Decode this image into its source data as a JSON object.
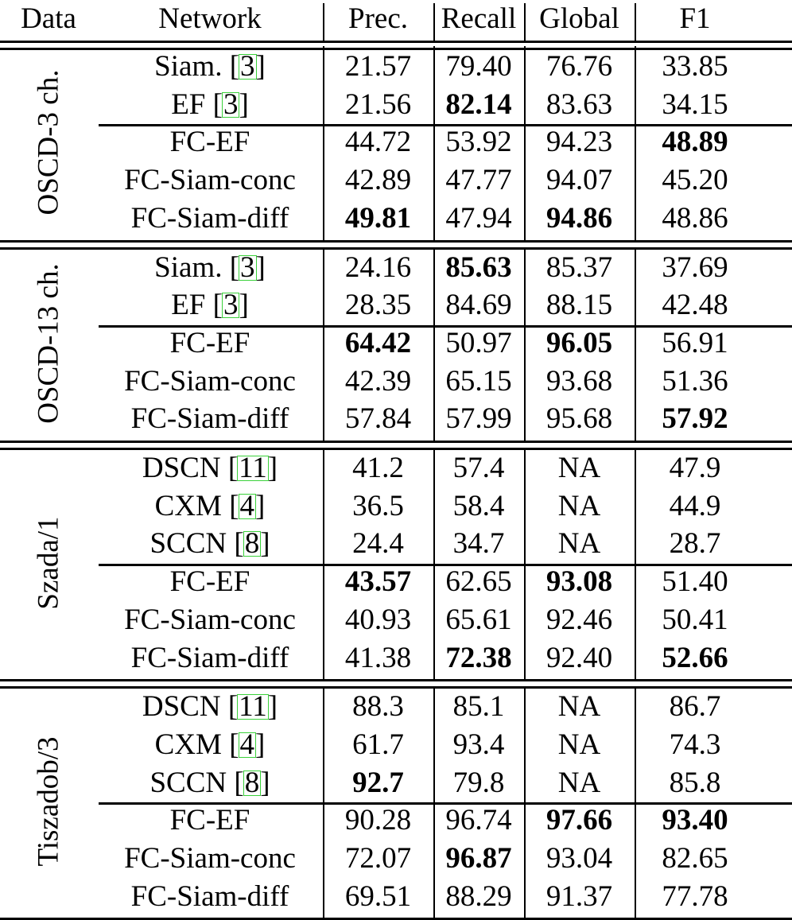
{
  "table": {
    "headers": [
      "Data",
      "Network",
      "Prec.",
      "Recall",
      "Global",
      "F1"
    ],
    "groups": [
      {
        "label": "OSCD-3 ch.",
        "rows": [
          {
            "network": "Siam.",
            "cite": "3",
            "prec": "21.57",
            "recall": "79.40",
            "global": "76.76",
            "f1": "33.85",
            "bold": []
          },
          {
            "network": "EF",
            "cite": "3",
            "prec": "21.56",
            "recall": "82.14",
            "global": "83.63",
            "f1": "34.15",
            "bold": [
              "recall"
            ]
          },
          {
            "network": "FC-EF",
            "cite": null,
            "prec": "44.72",
            "recall": "53.92",
            "global": "94.23",
            "f1": "48.89",
            "bold": [
              "f1"
            ]
          },
          {
            "network": "FC-Siam-conc",
            "cite": null,
            "prec": "42.89",
            "recall": "47.77",
            "global": "94.07",
            "f1": "45.20",
            "bold": []
          },
          {
            "network": "FC-Siam-diff",
            "cite": null,
            "prec": "49.81",
            "recall": "47.94",
            "global": "94.86",
            "f1": "48.86",
            "bold": [
              "prec",
              "global"
            ]
          }
        ],
        "baseline_count": 2
      },
      {
        "label": "OSCD-13 ch.",
        "rows": [
          {
            "network": "Siam.",
            "cite": "3",
            "prec": "24.16",
            "recall": "85.63",
            "global": "85.37",
            "f1": "37.69",
            "bold": [
              "recall"
            ]
          },
          {
            "network": "EF",
            "cite": "3",
            "prec": "28.35",
            "recall": "84.69",
            "global": "88.15",
            "f1": "42.48",
            "bold": []
          },
          {
            "network": "FC-EF",
            "cite": null,
            "prec": "64.42",
            "recall": "50.97",
            "global": "96.05",
            "f1": "56.91",
            "bold": [
              "prec",
              "global"
            ]
          },
          {
            "network": "FC-Siam-conc",
            "cite": null,
            "prec": "42.39",
            "recall": "65.15",
            "global": "93.68",
            "f1": "51.36",
            "bold": []
          },
          {
            "network": "FC-Siam-diff",
            "cite": null,
            "prec": "57.84",
            "recall": "57.99",
            "global": "95.68",
            "f1": "57.92",
            "bold": [
              "f1"
            ]
          }
        ],
        "baseline_count": 2
      },
      {
        "label": "Szada/1",
        "rows": [
          {
            "network": "DSCN",
            "cite": "11",
            "prec": "41.2",
            "recall": "57.4",
            "global": "NA",
            "f1": "47.9",
            "bold": []
          },
          {
            "network": "CXM",
            "cite": "4",
            "prec": "36.5",
            "recall": "58.4",
            "global": "NA",
            "f1": "44.9",
            "bold": []
          },
          {
            "network": "SCCN",
            "cite": "8",
            "prec": "24.4",
            "recall": "34.7",
            "global": "NA",
            "f1": "28.7",
            "bold": []
          },
          {
            "network": "FC-EF",
            "cite": null,
            "prec": "43.57",
            "recall": "62.65",
            "global": "93.08",
            "f1": "51.40",
            "bold": [
              "prec",
              "global"
            ]
          },
          {
            "network": "FC-Siam-conc",
            "cite": null,
            "prec": "40.93",
            "recall": "65.61",
            "global": "92.46",
            "f1": "50.41",
            "bold": []
          },
          {
            "network": "FC-Siam-diff",
            "cite": null,
            "prec": "41.38",
            "recall": "72.38",
            "global": "92.40",
            "f1": "52.66",
            "bold": [
              "recall",
              "f1"
            ]
          }
        ],
        "baseline_count": 3
      },
      {
        "label": "Tiszadob/3",
        "rows": [
          {
            "network": "DSCN",
            "cite": "11",
            "prec": "88.3",
            "recall": "85.1",
            "global": "NA",
            "f1": "86.7",
            "bold": []
          },
          {
            "network": "CXM",
            "cite": "4",
            "prec": "61.7",
            "recall": "93.4",
            "global": "NA",
            "f1": "74.3",
            "bold": []
          },
          {
            "network": "SCCN",
            "cite": "8",
            "prec": "92.7",
            "recall": "79.8",
            "global": "NA",
            "f1": "85.8",
            "bold": [
              "prec"
            ]
          },
          {
            "network": "FC-EF",
            "cite": null,
            "prec": "90.28",
            "recall": "96.74",
            "global": "97.66",
            "f1": "93.40",
            "bold": [
              "global",
              "f1"
            ]
          },
          {
            "network": "FC-Siam-conc",
            "cite": null,
            "prec": "72.07",
            "recall": "96.87",
            "global": "93.04",
            "f1": "82.65",
            "bold": [
              "recall"
            ]
          },
          {
            "network": "FC-Siam-diff",
            "cite": null,
            "prec": "69.51",
            "recall": "88.29",
            "global": "91.37",
            "f1": "77.78",
            "bold": []
          }
        ],
        "baseline_count": 3
      }
    ]
  }
}
